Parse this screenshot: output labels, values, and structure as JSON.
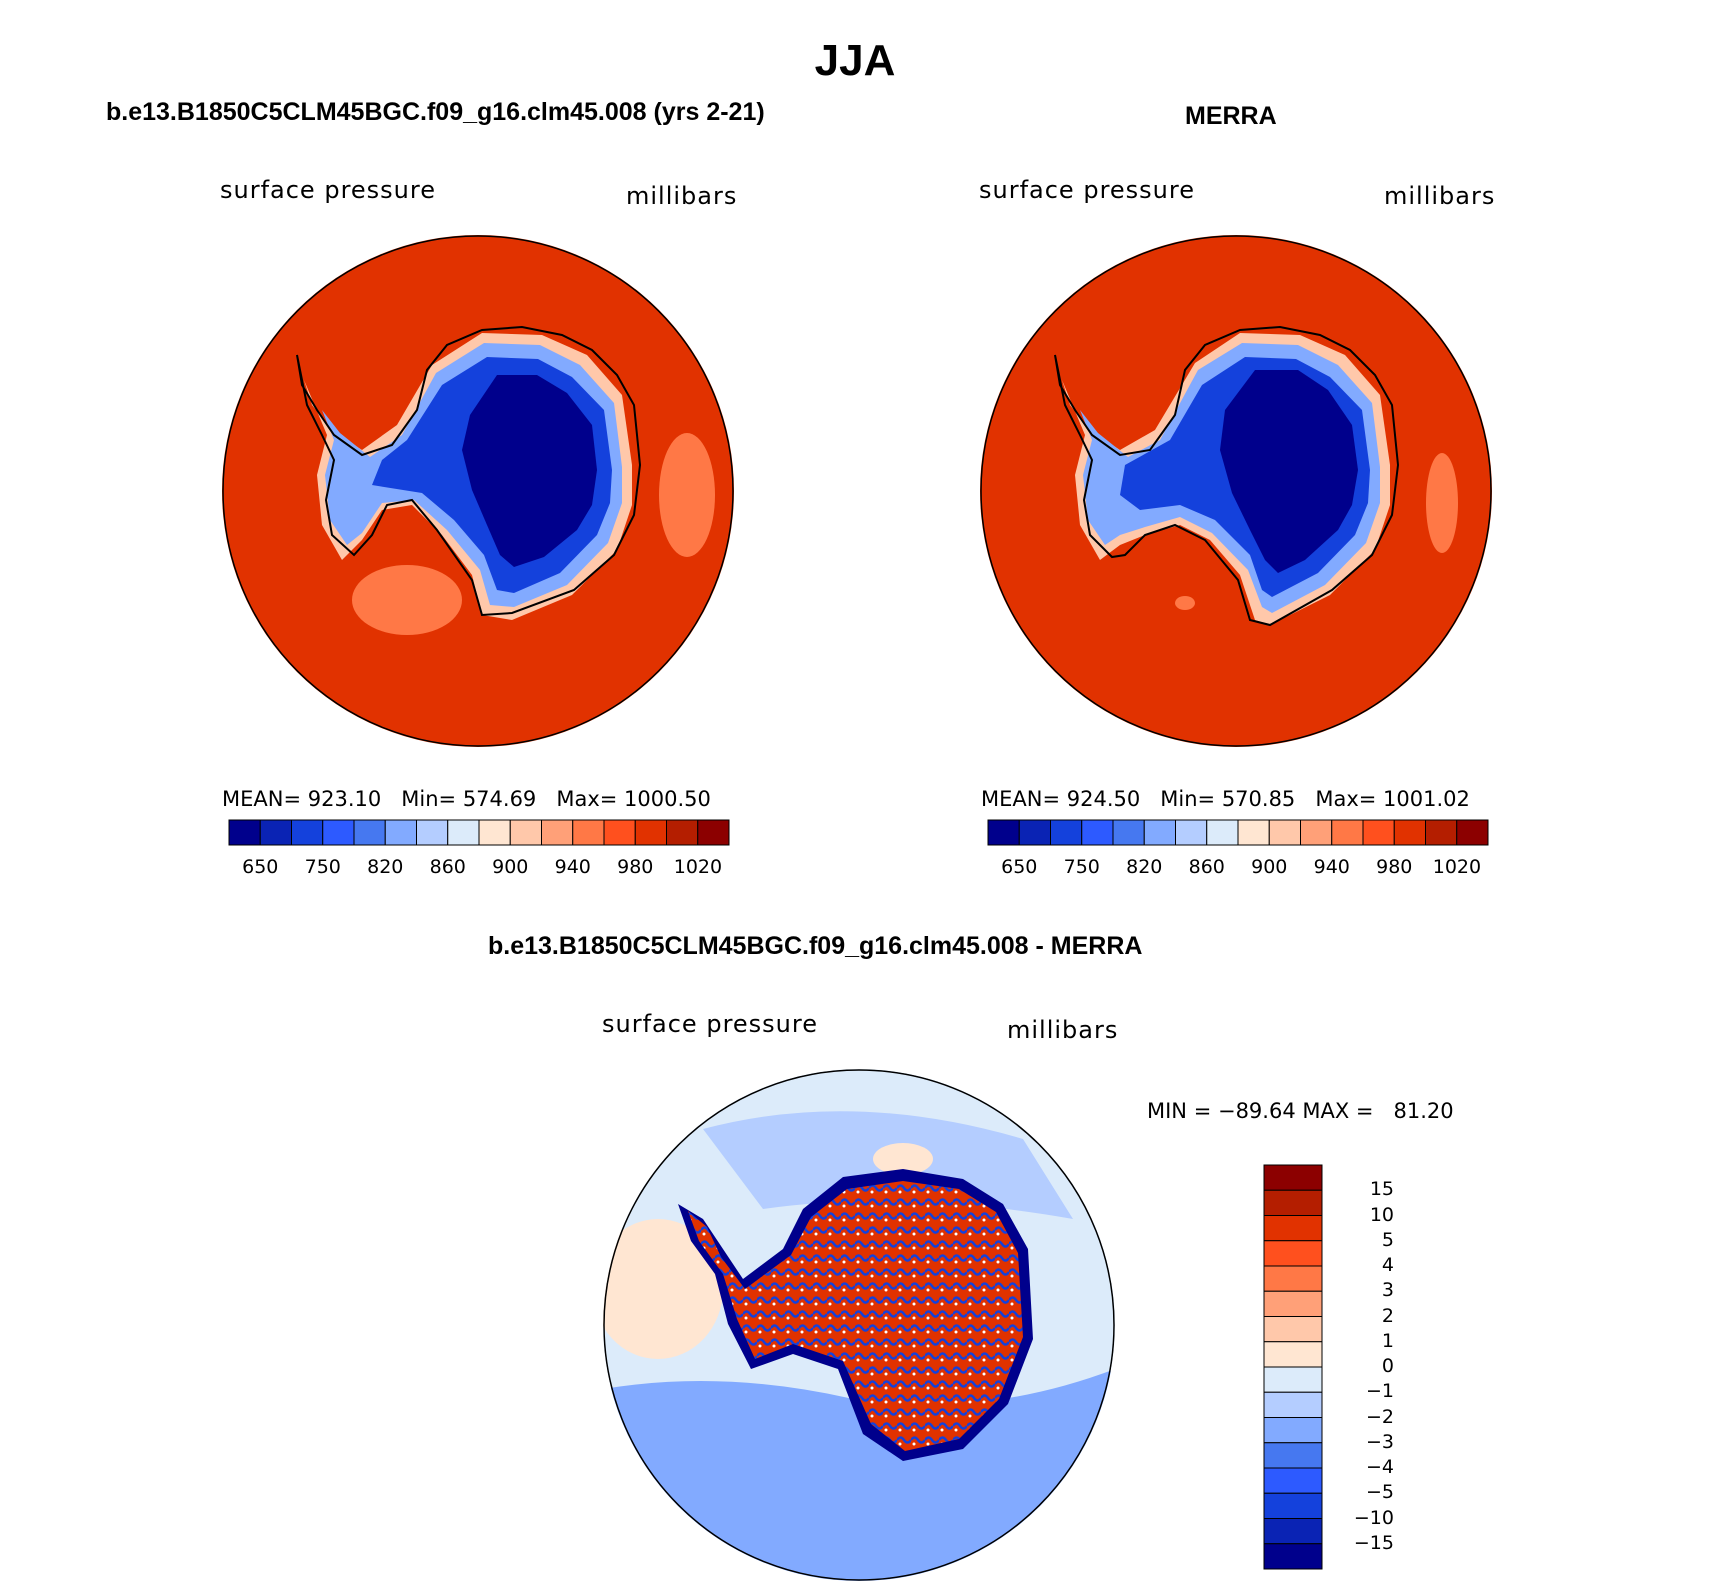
{
  "main_title": "JJA",
  "panels": [
    {
      "title": "b.e13.B1850C5CLM45BGC.f09_g16.clm45.008 (yrs 2-21)",
      "variable": "surface pressure",
      "units": "millibars",
      "stats": {
        "mean_label": "MEAN=",
        "mean": "923.10",
        "min_label": "Min=",
        "min": "574.69",
        "max_label": "Max=",
        "max": "1000.50"
      }
    },
    {
      "title": "MERRA",
      "variable": "surface pressure",
      "units": "millibars",
      "stats": {
        "mean_label": "MEAN=",
        "mean": "924.50",
        "min_label": "Min=",
        "min": "570.85",
        "max_label": "Max=",
        "max": "1001.02"
      }
    },
    {
      "title": "b.e13.B1850C5CLM45BGC.f09_g16.clm45.008 - MERRA",
      "variable": "surface pressure",
      "units": "millibars",
      "stats": {
        "text": "MIN = −89.64 MAX =   81.20"
      }
    }
  ],
  "chart_data": [
    {
      "type": "heatmap",
      "projection": "south polar stereographic",
      "title": "b.e13.B1850C5CLM45BGC.f09_g16.clm45.008 (yrs 2-21)",
      "variable": "surface pressure",
      "units": "millibars",
      "mean": 923.1,
      "min": 574.69,
      "max": 1000.5,
      "colorbar": {
        "orientation": "horizontal",
        "tick_labels": [
          "650",
          "750",
          "820",
          "860",
          "900",
          "940",
          "980",
          "1020"
        ],
        "colors": [
          "#00008c",
          "#0a23b4",
          "#1441dc",
          "#2d5aff",
          "#4678f0",
          "#82aaff",
          "#b4cdff",
          "#dcebfa",
          "#ffe6d2",
          "#ffc8aa",
          "#ffa078",
          "#ff7846",
          "#ff501e",
          "#e13200",
          "#b41e00",
          "#8c0000"
        ]
      },
      "regions": {
        "ocean": "#e13200",
        "continent_high_plateau": "#00008c",
        "continent_mid": "#1441dc",
        "continent_edge": "#82aaff",
        "ross_ice_shelf_low": "#ff7846",
        "coast_transition": "#ffc8aa"
      }
    },
    {
      "type": "heatmap",
      "projection": "south polar stereographic",
      "title": "MERRA",
      "variable": "surface pressure",
      "units": "millibars",
      "mean": 924.5,
      "min": 570.85,
      "max": 1001.02,
      "colorbar": {
        "orientation": "horizontal",
        "tick_labels": [
          "650",
          "750",
          "820",
          "860",
          "900",
          "940",
          "980",
          "1020"
        ],
        "colors": [
          "#00008c",
          "#0a23b4",
          "#1441dc",
          "#2d5aff",
          "#4678f0",
          "#82aaff",
          "#b4cdff",
          "#dcebfa",
          "#ffe6d2",
          "#ffc8aa",
          "#ffa078",
          "#ff7846",
          "#ff501e",
          "#e13200",
          "#b41e00",
          "#8c0000"
        ]
      },
      "regions": {
        "ocean": "#e13200",
        "continent_high_plateau": "#00008c",
        "continent_mid": "#1441dc",
        "continent_edge": "#82aaff",
        "ross_ice_shelf_low": "#ff7846",
        "coast_transition": "#ffc8aa"
      }
    },
    {
      "type": "heatmap",
      "projection": "south polar stereographic",
      "title": "b.e13.B1850C5CLM45BGC.f09_g16.clm45.008 - MERRA",
      "variable": "surface pressure",
      "units": "millibars",
      "min": -89.64,
      "max": 81.2,
      "colorbar": {
        "orientation": "vertical",
        "tick_labels": [
          "15",
          "10",
          "5",
          "4",
          "3",
          "2",
          "1",
          "0",
          "−1",
          "−2",
          "−3",
          "−4",
          "−5",
          "−10",
          "−15"
        ],
        "colors": [
          "#8c0000",
          "#b41e00",
          "#e13200",
          "#ff501e",
          "#ff7846",
          "#ffa078",
          "#ffc8aa",
          "#ffe6d2",
          "#dcebfa",
          "#b4cdff",
          "#82aaff",
          "#4678f0",
          "#2d5aff",
          "#1441dc",
          "#0a23b4",
          "#00008c"
        ]
      },
      "regions": {
        "ocean_background": "#dcebfa",
        "ocean_negative": "#b4cdff",
        "ocean_more_negative": "#82aaff",
        "ocean_positive": "#ffe6d2",
        "continent_noise_high": "#e13200",
        "continent_noise_low": "#1441dc",
        "coast_ring": "#00008c"
      }
    }
  ]
}
